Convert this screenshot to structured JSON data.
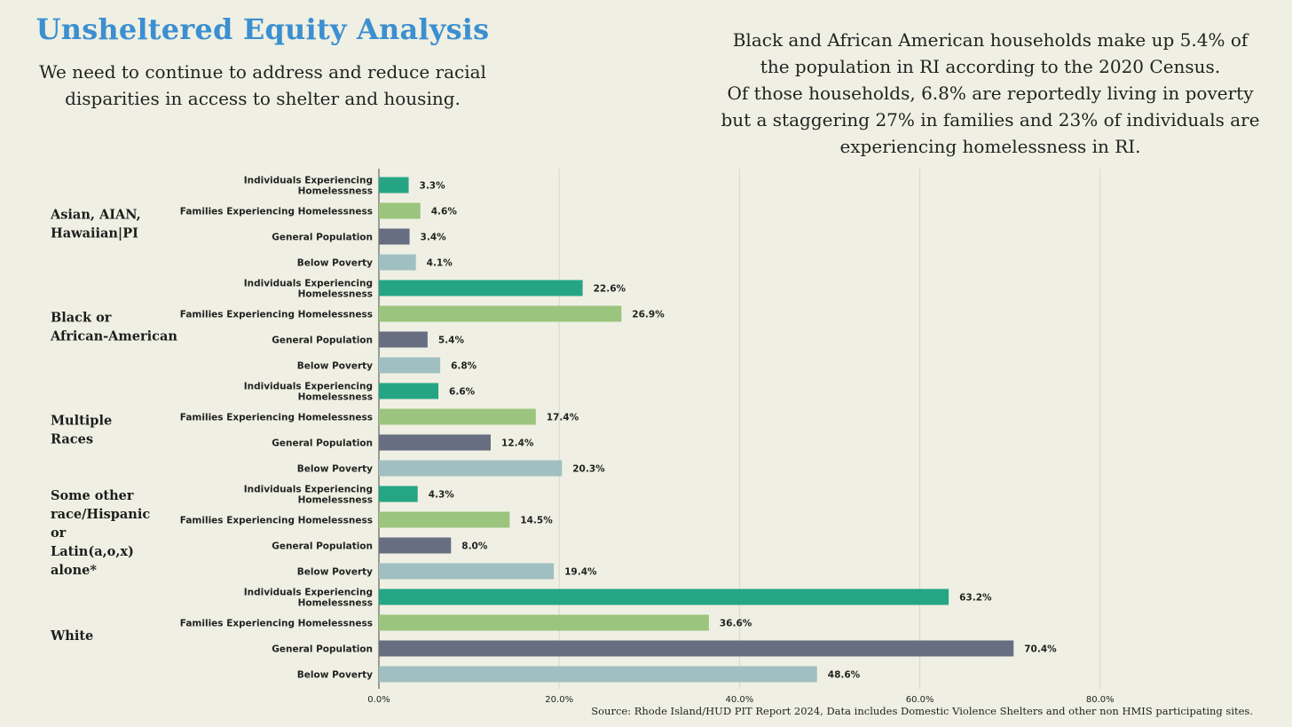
{
  "header": {
    "title": "Unsheltered Equity Analysis",
    "subtitle": "We need to continue to address and reduce racial disparities in access to shelter and housing."
  },
  "note": {
    "lines": [
      "Black and African American households make up 5.4% of",
      "the population in RI according to the 2020 Census.",
      "Of those households, 6.8% are reportedly living in poverty",
      "but a staggering 27% in families and 23% of individuals are",
      "experiencing homelessness in RI."
    ]
  },
  "source": "Source: Rhode Island/HUD PIT Report 2024, Data includes Domestic Violence Shelters and other non HMIS participating sites.",
  "chart_data": {
    "type": "bar",
    "orientation": "horizontal",
    "xlim": [
      0,
      100
    ],
    "x_ticks": [
      "0.0%",
      "20.0%",
      "40.0%",
      "60.0%",
      "80.0%"
    ],
    "grid": true,
    "series_colors": {
      "Individuals Experiencing Homelessness": "#26a585",
      "Families Experiencing Homelessness": "#9bc47e",
      "General Population": "#686e81",
      "Below Poverty": "#a0bfc2"
    },
    "groups": [
      {
        "name": "Asian, AIAN, Hawaiian|PI",
        "bars": [
          {
            "label": "Individuals Experiencing Homelessness",
            "value": 3.3,
            "value_label": "3.3%"
          },
          {
            "label": "Families Experiencing Homelessness",
            "value": 4.6,
            "value_label": "4.6%"
          },
          {
            "label": "General Population",
            "value": 3.4,
            "value_label": "3.4%"
          },
          {
            "label": "Below Poverty",
            "value": 4.1,
            "value_label": "4.1%"
          }
        ]
      },
      {
        "name": "Black or African-American",
        "bars": [
          {
            "label": "Individuals Experiencing Homelessness",
            "value": 22.6,
            "value_label": "22.6%"
          },
          {
            "label": "Families Experiencing Homelessness",
            "value": 26.9,
            "value_label": "26.9%"
          },
          {
            "label": "General Population",
            "value": 5.4,
            "value_label": "5.4%"
          },
          {
            "label": "Below Poverty",
            "value": 6.8,
            "value_label": "6.8%"
          }
        ]
      },
      {
        "name": "Multiple Races",
        "bars": [
          {
            "label": "Individuals Experiencing Homelessness",
            "value": 6.6,
            "value_label": "6.6%"
          },
          {
            "label": "Families Experiencing Homelessness",
            "value": 17.4,
            "value_label": "17.4%"
          },
          {
            "label": "General Population",
            "value": 12.4,
            "value_label": "12.4%"
          },
          {
            "label": "Below Poverty",
            "value": 20.3,
            "value_label": "20.3%"
          }
        ]
      },
      {
        "name": "Some other race/Hispanic or Latin(a,o,x) alone*",
        "bars": [
          {
            "label": "Individuals Experiencing Homelessness",
            "value": 4.3,
            "value_label": "4.3%"
          },
          {
            "label": "Families Experiencing Homelessness",
            "value": 14.5,
            "value_label": "14.5%"
          },
          {
            "label": "General Population",
            "value": 8.0,
            "value_label": "8.0%"
          },
          {
            "label": "Below Poverty",
            "value": 19.4,
            "value_label": "19.4%"
          }
        ]
      },
      {
        "name": "White",
        "bars": [
          {
            "label": "Individuals Experiencing Homelessness",
            "value": 63.2,
            "value_label": "63.2%"
          },
          {
            "label": "Families Experiencing Homelessness",
            "value": 36.6,
            "value_label": "36.6%"
          },
          {
            "label": "General Population",
            "value": 70.4,
            "value_label": "70.4%"
          },
          {
            "label": "Below Poverty",
            "value": 48.6,
            "value_label": "48.6%"
          }
        ]
      }
    ]
  }
}
